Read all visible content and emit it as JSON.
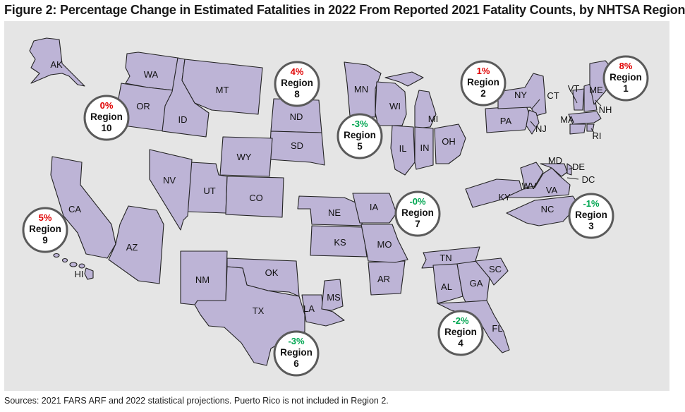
{
  "title": "Figure 2: Percentage Change in Estimated Fatalities in 2022 From Reported 2021 Fatality Counts, by NHTSA Region",
  "source": "Sources: 2021 FARS ARF and 2022 statistical projections. Puerto Rico is not included in Region 2.",
  "colors": {
    "state_fill": "#bdb4d6",
    "increase": "#e00000",
    "decrease": "#00a651",
    "background": "#e5e5e5"
  },
  "states": {
    "AK": "AK",
    "HI": "HI",
    "WA": "WA",
    "OR": "OR",
    "ID": "ID",
    "MT": "MT",
    "CA": "CA",
    "NV": "NV",
    "UT": "UT",
    "AZ": "AZ",
    "WY": "WY",
    "CO": "CO",
    "NM": "NM",
    "ND": "ND",
    "SD": "SD",
    "NE": "NE",
    "KS": "KS",
    "OK": "OK",
    "TX": "TX",
    "MN": "MN",
    "IA": "IA",
    "MO": "MO",
    "AR": "AR",
    "LA": "LA",
    "WI": "WI",
    "IL": "IL",
    "MI": "MI",
    "IN": "IN",
    "OH": "OH",
    "KY": "KY",
    "TN": "TN",
    "MS": "MS",
    "AL": "AL",
    "GA": "GA",
    "FL": "FL",
    "SC": "SC",
    "NC": "NC",
    "VA": "VA",
    "WV": "WV",
    "MD": "MD",
    "DE": "DE",
    "DC": "DC",
    "PA": "PA",
    "NJ": "NJ",
    "NY": "NY",
    "CT": "CT",
    "RI": "RI",
    "MA": "MA",
    "VT": "VT",
    "NH": "NH",
    "ME": "ME"
  },
  "regions": [
    {
      "pct": "8%",
      "label": "Region",
      "num": "1",
      "direction": "increase"
    },
    {
      "pct": "1%",
      "label": "Region",
      "num": "2",
      "direction": "increase"
    },
    {
      "pct": "-1%",
      "label": "Region",
      "num": "3",
      "direction": "decrease"
    },
    {
      "pct": "-2%",
      "label": "Region",
      "num": "4",
      "direction": "decrease"
    },
    {
      "pct": "-3%",
      "label": "Region",
      "num": "5",
      "direction": "decrease"
    },
    {
      "pct": "-3%",
      "label": "Region",
      "num": "6",
      "direction": "decrease"
    },
    {
      "pct": "-0%",
      "label": "Region",
      "num": "7",
      "direction": "decrease"
    },
    {
      "pct": "4%",
      "label": "Region",
      "num": "8",
      "direction": "increase"
    },
    {
      "pct": "5%",
      "label": "Region",
      "num": "9",
      "direction": "increase"
    },
    {
      "pct": "0%",
      "label": "Region",
      "num": "10",
      "direction": "increase"
    }
  ]
}
